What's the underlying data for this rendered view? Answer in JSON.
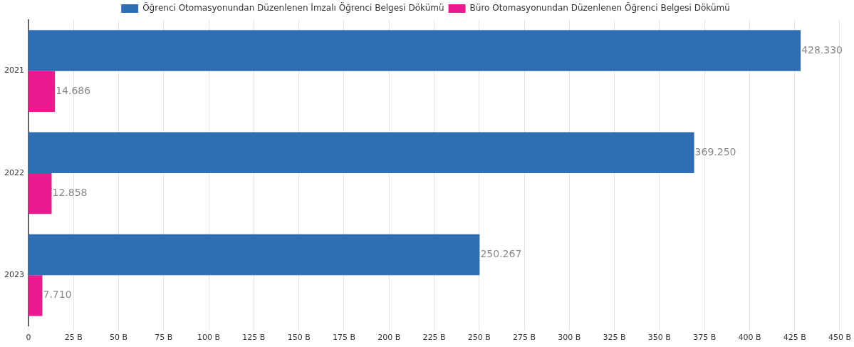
{
  "chart_data": {
    "type": "bar",
    "orientation": "horizontal",
    "categories": [
      "2021",
      "2022",
      "2023"
    ],
    "series": [
      {
        "name": "Öğrenci Otomasyonundan Düzenlenen İmzalı Öğrenci Belgesi Dökümü",
        "color": "#306eb4",
        "values": [
          428.33,
          369.25,
          250.267
        ],
        "value_labels": [
          "428.330",
          "369.250",
          "250.267"
        ]
      },
      {
        "name": "Büro Otomasyonundan Düzenlenen Öğrenci Belgesi Dökümü",
        "color": "#ec1a8f",
        "values": [
          14.686,
          12.858,
          7.71
        ],
        "value_labels": [
          "14.686",
          "12.858",
          "7.710"
        ]
      }
    ],
    "xlim": [
      0,
      450
    ],
    "xticks": [
      0,
      {
        "value": 25,
        "label": "25 B"
      },
      {
        "value": 50,
        "label": "50 B"
      },
      {
        "value": 75,
        "label": "75 B"
      },
      {
        "value": 100,
        "label": "100 B"
      },
      {
        "value": 125,
        "label": "125 B"
      },
      {
        "value": 150,
        "label": "150 B"
      },
      {
        "value": 175,
        "label": "175 B"
      },
      {
        "value": 200,
        "label": "200 B"
      },
      {
        "value": 225,
        "label": "225 B"
      },
      {
        "value": 250,
        "label": "250 B"
      },
      {
        "value": 275,
        "label": "275 B"
      },
      {
        "value": 300,
        "label": "300 B"
      },
      {
        "value": 325,
        "label": "325 B"
      },
      {
        "value": 350,
        "label": "350 B"
      },
      {
        "value": 375,
        "label": "375 B"
      },
      {
        "value": 400,
        "label": "400 B"
      },
      {
        "value": 425,
        "label": "425 B"
      },
      {
        "value": 450,
        "label": "450 B"
      }
    ],
    "grid": "x",
    "legend": "top"
  }
}
